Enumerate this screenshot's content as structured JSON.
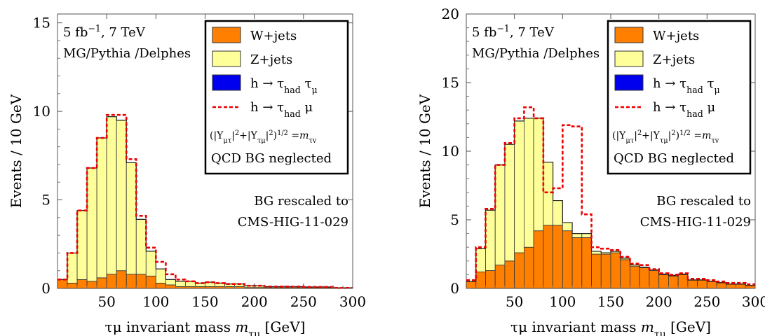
{
  "colors": {
    "wjets": "#ff7f00",
    "zjets": "#ffff99",
    "signal": "#0000ee",
    "alt_signal": "#ee0000"
  },
  "chart_data": [
    {
      "type": "area",
      "chart_style": "stacked step histogram",
      "xlabel_parts": [
        "τμ invariant mass ",
        "m",
        "τμ",
        " [GeV]"
      ],
      "ylabel": "Events / 10 GeV",
      "xlim": [
        0,
        300
      ],
      "ylim": [
        0,
        15.5
      ],
      "xticks": [
        50,
        100,
        150,
        200,
        250,
        300
      ],
      "yticks": [
        0,
        5,
        10,
        15
      ],
      "annotations": {
        "top_left_1_parts": [
          "5 fb",
          "−1",
          ",  7 TeV"
        ],
        "top_left_2": "MG/Pythia /Delphes",
        "right_1": "BG rescaled to",
        "right_2": "CMS-HIG-11-029"
      },
      "legend_position": "top-right",
      "legend": {
        "w": "W+jets",
        "z": "Z+jets",
        "sig_parts": [
          "h  →  τ",
          "had",
          " τ",
          "μ"
        ],
        "alt_parts": [
          "h  →  τ",
          "had",
          " μ"
        ],
        "coupling_parts": [
          "(|Y",
          "μτ",
          "|",
          "2",
          "+|Y",
          "τμ",
          "|",
          "2",
          ")",
          "1/2",
          " =",
          "m",
          "τ",
          "v"
        ],
        "note": "QCD BG neglected"
      },
      "bin_edges": [
        0,
        10,
        20,
        30,
        40,
        50,
        60,
        70,
        80,
        90,
        100,
        110,
        120,
        130,
        140,
        150,
        160,
        170,
        180,
        190,
        200,
        210,
        220,
        230,
        240,
        250,
        260,
        270,
        280,
        290,
        300
      ],
      "series": [
        {
          "name": "W+jets",
          "values": [
            0.5,
            0.3,
            0.5,
            0.4,
            0.6,
            0.8,
            1.0,
            0.8,
            0.8,
            0.7,
            0.3,
            0.2,
            0.1,
            0.1,
            0.1,
            0.1,
            0.1,
            0.1,
            0.1,
            0.05,
            0.05,
            0.05,
            0.05,
            0.05,
            0.05,
            0.05,
            0.05,
            0.05,
            0.02,
            0.02
          ]
        },
        {
          "name": "Z+jets",
          "values": [
            0,
            1.7,
            3.9,
            6.4,
            7.9,
            8.9,
            8.5,
            6.3,
            3.1,
            1.4,
            0.8,
            0.3,
            0.3,
            0.3,
            0.2,
            0.25,
            0.2,
            0.15,
            0.15,
            0.1,
            0.1,
            0.05,
            0.05,
            0.05,
            0.05,
            0.03,
            0.03,
            0.03,
            0.01,
            0.01
          ]
        },
        {
          "name": "h → τhad τμ",
          "values": [
            0,
            0,
            0,
            0,
            0,
            0,
            0,
            0,
            0,
            0,
            0,
            0,
            0,
            0,
            0,
            0,
            0,
            0,
            0,
            0,
            0,
            0,
            0,
            0,
            0,
            0,
            0,
            0,
            0,
            0
          ]
        },
        {
          "name": "h → τhad μ",
          "values": [
            0.5,
            2.0,
            4.4,
            6.8,
            8.5,
            9.8,
            9.8,
            7.3,
            4.1,
            2.3,
            1.5,
            0.8,
            0.5,
            0.4,
            0.3,
            0.35,
            0.3,
            0.25,
            0.25,
            0.15,
            0.15,
            0.1,
            0.1,
            0.1,
            0.1,
            0.08,
            0.08,
            0.08,
            0.03,
            0.03
          ]
        }
      ]
    },
    {
      "type": "area",
      "chart_style": "stacked step histogram",
      "xlabel_parts": [
        "τμ invariant mass ",
        "m",
        "τμ",
        " [GeV]"
      ],
      "ylabel": "Events / 10 GeV",
      "xlim": [
        0,
        300
      ],
      "ylim": [
        0,
        20
      ],
      "xticks": [
        50,
        100,
        150,
        200,
        250,
        300
      ],
      "yticks": [
        0,
        5,
        10,
        15,
        20
      ],
      "annotations": {
        "top_left_1_parts": [
          "5 fb",
          "−1",
          ",  7 TeV"
        ],
        "top_left_2": "MG/Pythia /Delphes",
        "right_1": "BG rescaled to",
        "right_2": "CMS-HIG-11-029"
      },
      "legend_position": "top-right",
      "legend": {
        "w": "W+jets",
        "z": "Z+jets",
        "sig_parts": [
          "h  →  τ",
          "had",
          " τ",
          "μ"
        ],
        "alt_parts": [
          "h  →  τ",
          "had",
          " μ"
        ],
        "coupling_parts": [
          "(|Y",
          "μτ",
          "|",
          "2",
          "+|Y",
          "τμ",
          "|",
          "2",
          ")",
          "1/2",
          " =",
          "m",
          "τ",
          "v"
        ],
        "note": "QCD BG neglected"
      },
      "bin_edges": [
        0,
        10,
        20,
        30,
        40,
        50,
        60,
        70,
        80,
        90,
        100,
        110,
        120,
        130,
        140,
        150,
        160,
        170,
        180,
        190,
        200,
        210,
        220,
        230,
        240,
        250,
        260,
        270,
        280,
        290,
        300
      ],
      "series": [
        {
          "name": "W+jets",
          "values": [
            0.5,
            1.2,
            1.3,
            1.7,
            2.0,
            2.6,
            3.0,
            4.2,
            4.6,
            4.6,
            4.2,
            3.7,
            3.7,
            2.5,
            2.5,
            2.6,
            2.1,
            1.6,
            1.5,
            1.3,
            1.0,
            0.9,
            1.0,
            0.6,
            0.6,
            0.5,
            0.4,
            0.3,
            0.3,
            0.2
          ]
        },
        {
          "name": "Z+jets",
          "values": [
            0,
            1.7,
            4.4,
            7.3,
            8.5,
            9.6,
            9.4,
            8.2,
            4.6,
            1.8,
            0.6,
            0.3,
            0.3,
            0.2,
            0.1,
            0.1,
            0.1,
            0.1,
            0.05,
            0.05,
            0.05,
            0.05,
            0.05,
            0.02,
            0.02,
            0.02,
            0.02,
            0.02,
            0.02,
            0.02
          ]
        },
        {
          "name": "h → τhad τμ",
          "values": [
            0,
            0,
            0,
            0,
            0,
            0,
            0,
            0,
            0,
            0,
            0,
            0,
            0,
            0,
            0,
            0,
            0,
            0,
            0,
            0,
            0,
            0,
            0,
            0,
            0,
            0,
            0,
            0,
            0,
            0
          ]
        },
        {
          "name": "h → τhad μ",
          "values": [
            0.6,
            3.0,
            5.8,
            9.0,
            10.6,
            12.4,
            13.2,
            12.4,
            7.0,
            7.3,
            11.9,
            11.8,
            5.4,
            3.0,
            2.9,
            2.8,
            2.3,
            1.8,
            1.7,
            1.4,
            1.1,
            1.0,
            1.1,
            0.7,
            0.7,
            0.6,
            0.5,
            0.4,
            0.4,
            0.3
          ]
        }
      ]
    }
  ]
}
